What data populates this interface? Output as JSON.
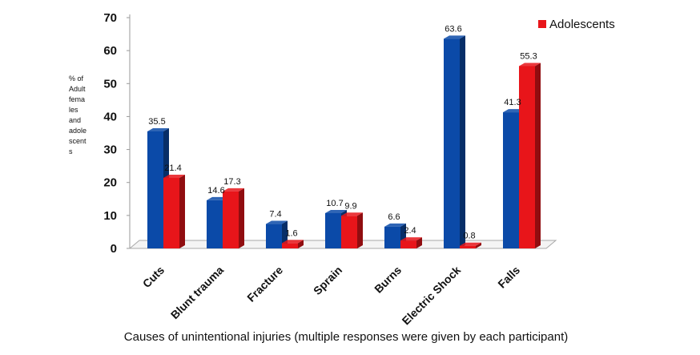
{
  "chart_data": {
    "type": "bar",
    "categories": [
      "Cuts",
      "Blunt trauma",
      "Fracture",
      "Sprain",
      "Burns",
      "Electric Shock",
      "Falls"
    ],
    "series": [
      {
        "values": [
          35.5,
          14.6,
          7.4,
          10.7,
          6.6,
          63.6,
          41.3
        ],
        "color": "#0b4aa8"
      },
      {
        "name": "Adolescents",
        "values": [
          21.4,
          17.3,
          1.6,
          9.9,
          2.4,
          0.8,
          55.3
        ],
        "color": "#e8151a"
      }
    ],
    "data_labels": [
      [
        "35.5",
        "14.6",
        "7.4",
        "10.7",
        "6.6",
        "63.6",
        "41.3"
      ],
      [
        "21.4",
        "17.3",
        "1.6",
        "9.9",
        "2.4",
        "0.8",
        "55.3"
      ]
    ],
    "ylim": [
      0,
      70
    ],
    "yticks": [
      0,
      10,
      20,
      30,
      40,
      50,
      60,
      70
    ],
    "ylabel_lines": [
      "% of",
      "Adult",
      "fema",
      "les",
      "and",
      "adole",
      "scent",
      "s"
    ],
    "xlabel": "Causes of unintentional injuries (multiple responses were given by each participant)",
    "legend_position": "top-right",
    "grid": false
  }
}
